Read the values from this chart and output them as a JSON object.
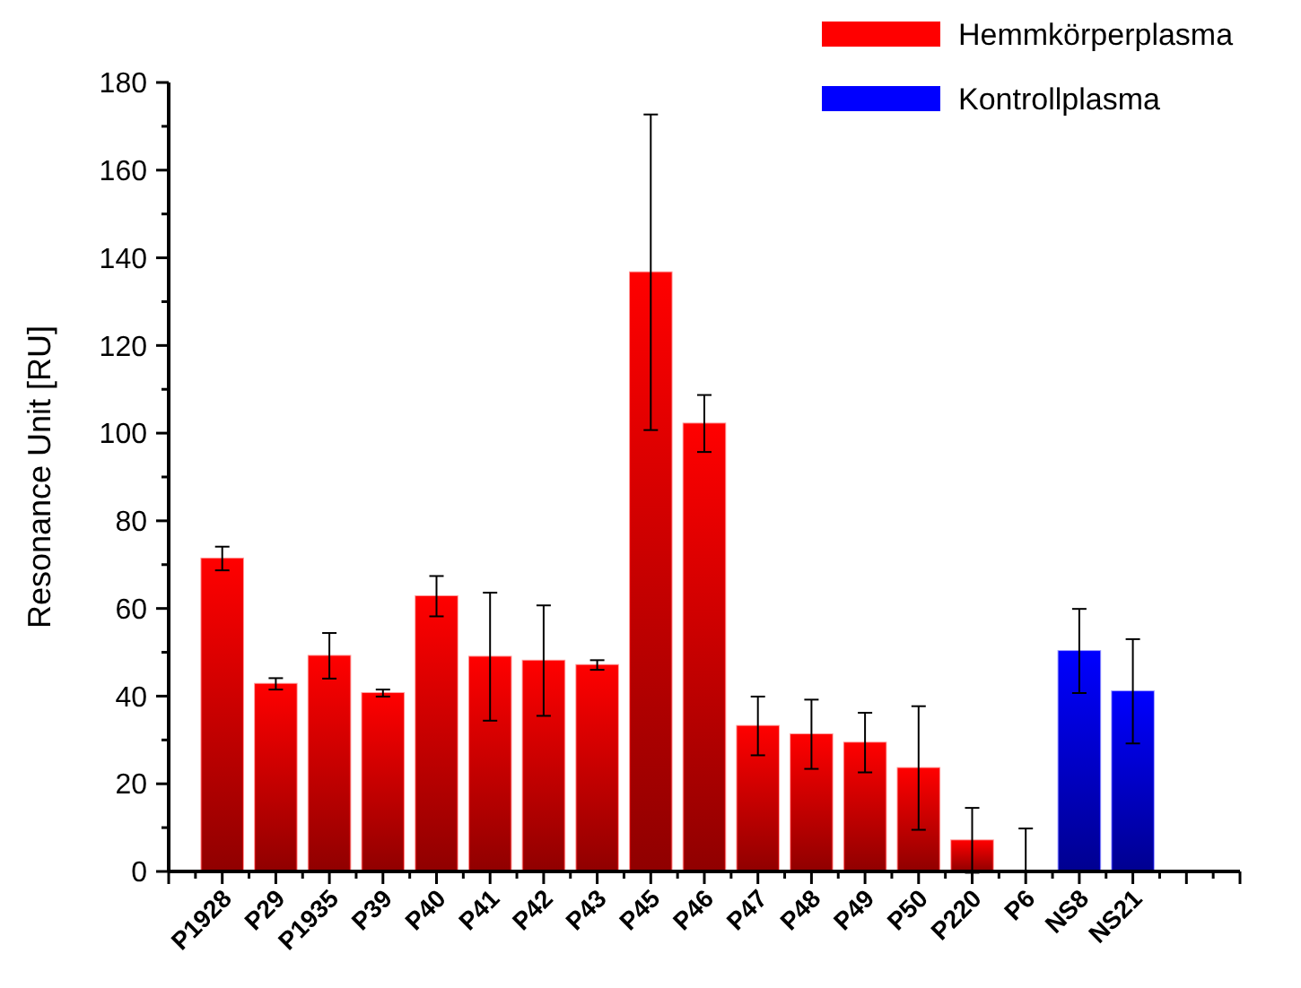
{
  "chart_data": {
    "type": "bar",
    "ylabel": "Resonance Unit [RU]",
    "categories": [
      "P1928",
      "P29",
      "P1935",
      "P39",
      "P40",
      "P41",
      "P42",
      "P43",
      "P45",
      "P46",
      "P47",
      "P48",
      "P49",
      "P50",
      "P220",
      "P6",
      "NS8",
      "NS21",
      null,
      null
    ],
    "series": [
      {
        "name": "Hemmkörperplasma",
        "color": "#ff0000",
        "values": [
          71.4,
          42.8,
          49.2,
          40.7,
          62.8,
          49.0,
          48.1,
          47.1,
          136.7,
          102.2,
          33.2,
          31.3,
          29.4,
          23.6,
          7.1,
          0,
          null,
          null,
          null,
          null
        ],
        "errors": [
          2.7,
          1.3,
          5.2,
          0.8,
          4.6,
          14.6,
          12.6,
          1.1,
          36,
          6.5,
          6.7,
          7.9,
          6.8,
          14.1,
          7.4,
          [
            0,
            9.8
          ],
          null,
          null,
          null,
          null
        ]
      },
      {
        "name": "Kontrollplasma",
        "color": "#0000ff",
        "values": [
          null,
          null,
          null,
          null,
          null,
          null,
          null,
          null,
          null,
          null,
          null,
          null,
          null,
          null,
          null,
          null,
          50.3,
          41.1,
          null,
          null
        ],
        "errors": [
          null,
          null,
          null,
          null,
          null,
          null,
          null,
          null,
          null,
          null,
          null,
          null,
          null,
          null,
          null,
          null,
          9.6,
          11.9,
          null,
          null
        ]
      }
    ],
    "ylim": [
      0,
      180
    ],
    "yticks": [
      0,
      {
        "value": 10,
        "label": null
      },
      20,
      {
        "value": 30,
        "label": null
      },
      40,
      {
        "value": 50,
        "label": null
      },
      60,
      {
        "value": 70,
        "label": null
      },
      80,
      {
        "value": 90,
        "label": null
      },
      100,
      {
        "value": 110,
        "label": null
      },
      120,
      {
        "value": 130,
        "label": null
      },
      140,
      {
        "value": 150,
        "label": null
      },
      160,
      {
        "value": 170,
        "label": null
      },
      180
    ],
    "legend": "top right",
    "grid": false
  }
}
